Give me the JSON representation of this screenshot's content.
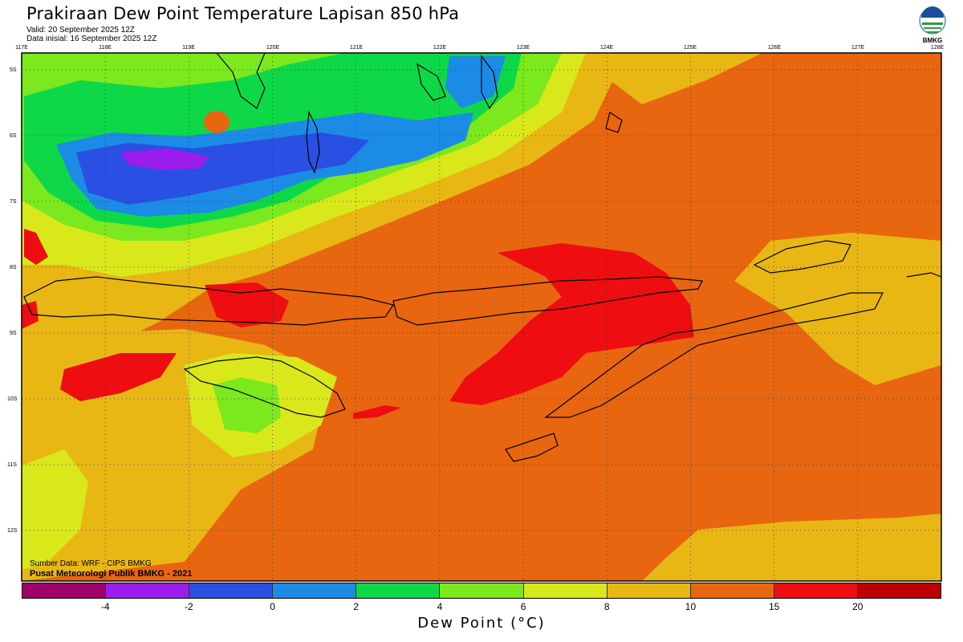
{
  "header": {
    "title": "Prakiraan Dew Point Temperature Lapisan 850 hPa",
    "valid": "Valid: 20 September 2025 12Z",
    "init": "Data inisial: 16 September 2025 12Z"
  },
  "logo": {
    "org": "BMKG",
    "colors": [
      "#1b4f9c",
      "#2e9c3e"
    ]
  },
  "map": {
    "lon_ticks": [
      "117E",
      "118E",
      "119E",
      "120E",
      "121E",
      "122E",
      "123E",
      "124E",
      "125E",
      "126E",
      "127E",
      "128E"
    ],
    "lat_ticks": [
      "5S",
      "6S",
      "7S",
      "8S",
      "9S",
      "10S",
      "11S",
      "12S"
    ],
    "background_color": "#e8660f"
  },
  "credits": {
    "source": "Sumber Data: WRF - CIPS BMKG",
    "publisher": "Pusat Meteorologi Publik BMKG - 2021"
  },
  "legend": {
    "label": "Dew Point (°C)",
    "colors": [
      "#a0006a",
      "#9b1ded",
      "#2a4fe3",
      "#1c8be6",
      "#0ed848",
      "#7ce81e",
      "#d9e81a",
      "#e8b714",
      "#e8660f",
      "#ee0d10",
      "#bc0000"
    ],
    "tick_labels": [
      "-4",
      "-2",
      "0",
      "2",
      "4",
      "6",
      "8",
      "10",
      "15",
      "20"
    ]
  }
}
